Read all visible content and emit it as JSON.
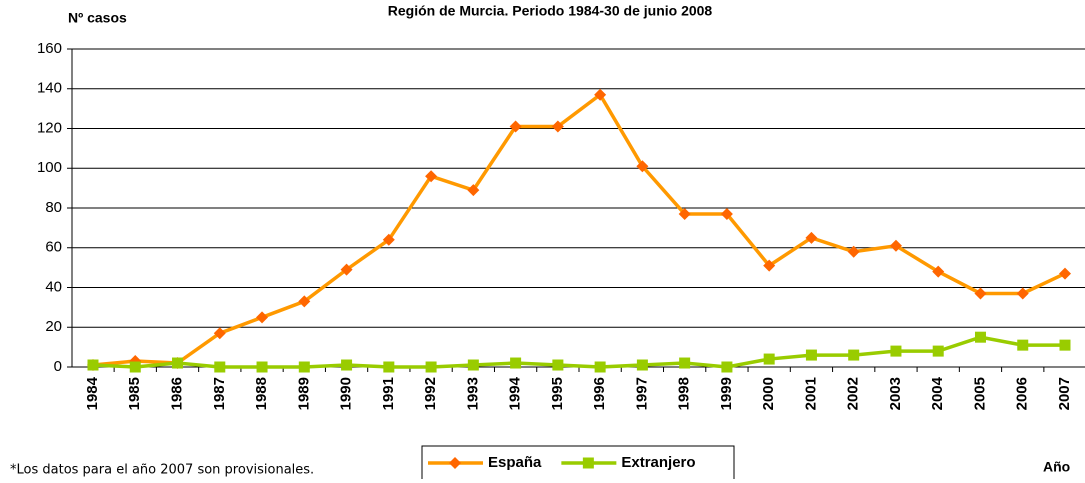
{
  "chart_data": {
    "type": "line",
    "title": "Región de Murcia. Periodo 1984-30 de junio 2008",
    "y_label": "Nº casos",
    "x_label": "Año",
    "note": "*Los datos para el año 2007 son provisionales.",
    "categories": [
      "1984",
      "1985",
      "1986",
      "1987",
      "1988",
      "1989",
      "1990",
      "1991",
      "1992",
      "1993",
      "1994",
      "1995",
      "1996",
      "1997",
      "1998",
      "1999",
      "2000",
      "2001",
      "2002",
      "2003",
      "2004",
      "2005",
      "2006",
      "2007"
    ],
    "series": [
      {
        "name": "España",
        "color": "#ff9900",
        "marker_color": "#ff6600",
        "marker": "diamond",
        "values": [
          1,
          3,
          2,
          17,
          25,
          33,
          49,
          64,
          96,
          89,
          121,
          121,
          137,
          101,
          77,
          77,
          51,
          65,
          58,
          61,
          48,
          37,
          37,
          47
        ]
      },
      {
        "name": "Extranjero",
        "color": "#99cc00",
        "marker_color": "#99cc00",
        "marker": "square",
        "values": [
          1,
          0,
          2,
          0,
          0,
          0,
          1,
          0,
          0,
          1,
          2,
          1,
          0,
          1,
          2,
          0,
          4,
          6,
          6,
          8,
          8,
          15,
          11,
          11
        ]
      }
    ],
    "ylim": [
      0,
      160
    ],
    "yticks": [
      0,
      20,
      40,
      60,
      80,
      100,
      120,
      140,
      160
    ],
    "grid": true
  }
}
